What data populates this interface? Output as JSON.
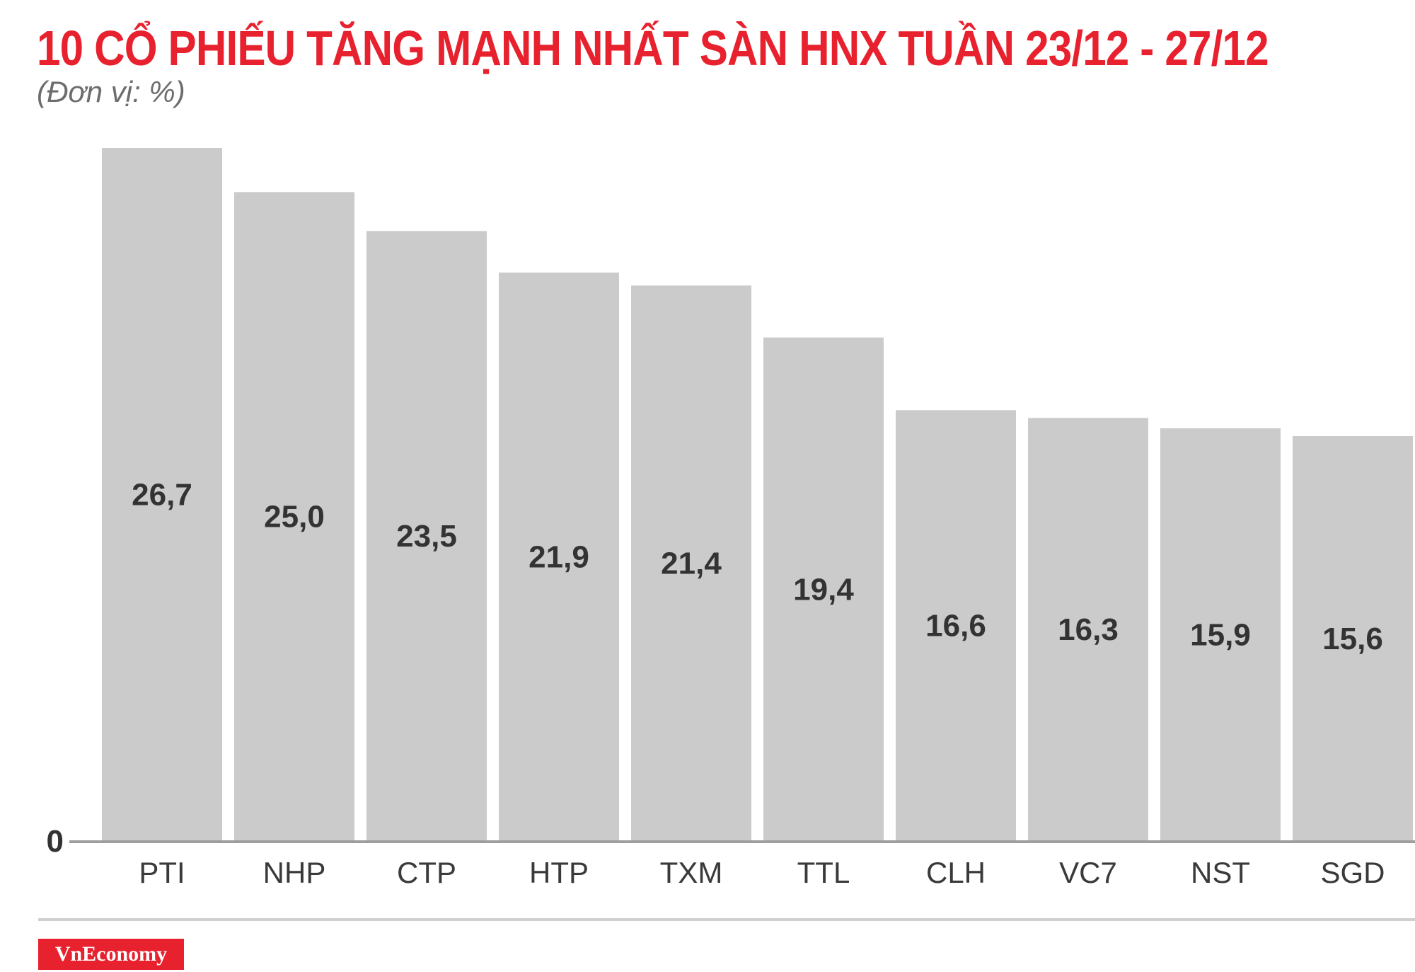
{
  "header": {
    "title": "10 CỔ PHIẾU TĂNG MẠNH NHẤT SÀN HNX TUẦN 23/12 - 27/12",
    "unit_note": "(Đơn vị: %)"
  },
  "footer": {
    "brand": "VnEconomy"
  },
  "colors": {
    "title": "#e8212e",
    "bar": "#cccbcc",
    "value_label": "#333333",
    "axis": "#9e9e9e",
    "tick_label": "#3a3a3a",
    "brand_bg": "#e8212e"
  },
  "chart_data": {
    "type": "bar",
    "categories": [
      "PTI",
      "NHP",
      "CTP",
      "HTP",
      "TXM",
      "TTL",
      "CLH",
      "VC7",
      "NST",
      "SGD"
    ],
    "values": [
      26.7,
      25.0,
      23.5,
      21.9,
      21.4,
      19.4,
      16.6,
      16.3,
      15.9,
      15.6
    ],
    "value_labels": [
      "26,7",
      "25,0",
      "23,5",
      "21,9",
      "21,4",
      "19,4",
      "16,6",
      "16,3",
      "15,9",
      "15,6"
    ],
    "title": "10 CỔ PHIẾU TĂNG MẠNH NHẤT SÀN HNX TUẦN 23/12 - 27/12",
    "xlabel": "",
    "ylabel": "",
    "y_tick_labels": [
      "0"
    ],
    "ylim": [
      0,
      26.7
    ],
    "grid": false,
    "legend": "none"
  }
}
